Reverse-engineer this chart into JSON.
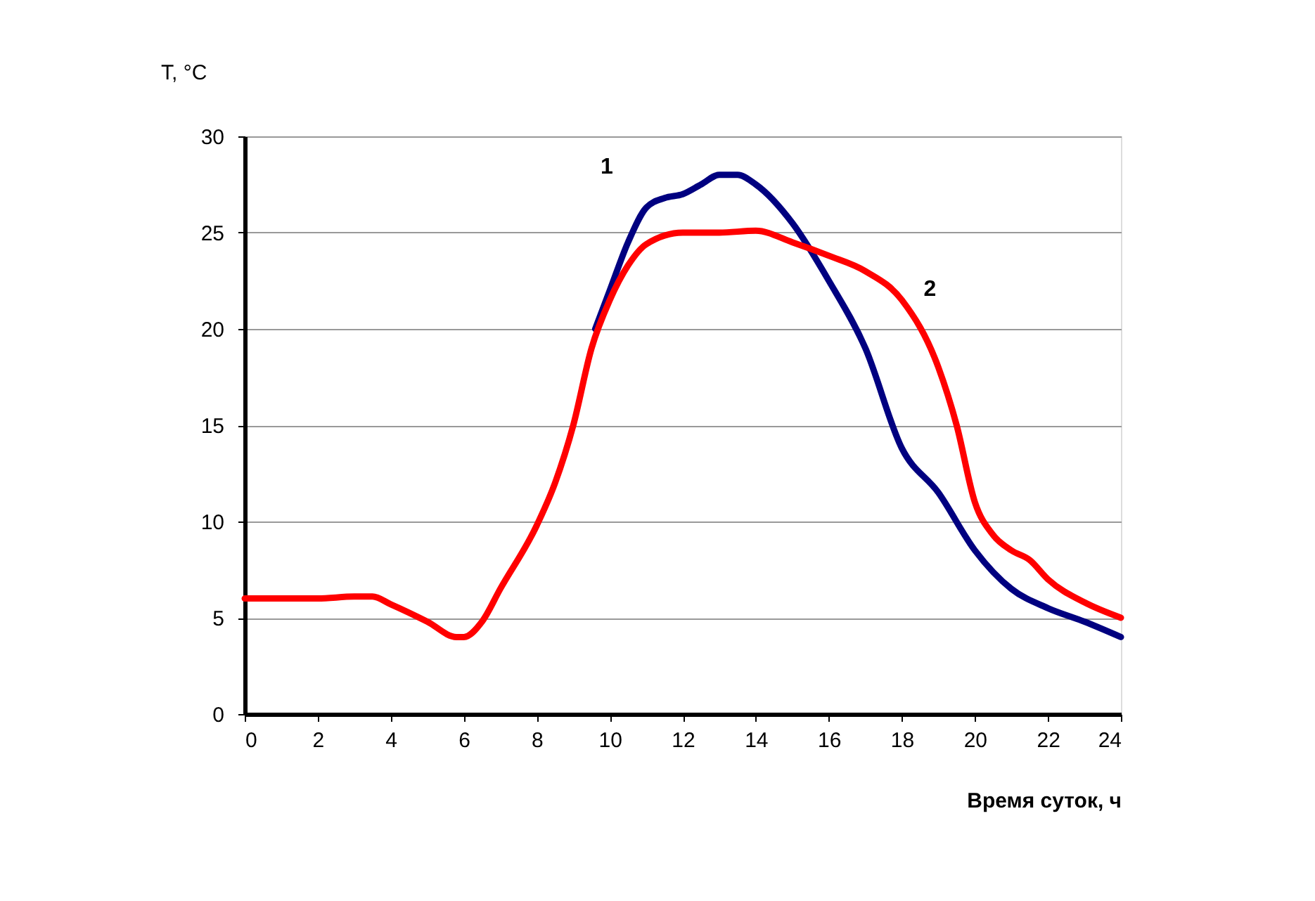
{
  "chart_data": {
    "type": "line",
    "xlabel": "Время суток, ч",
    "ylabel": "T, °C",
    "xlim": [
      0,
      24
    ],
    "xticks": [
      0,
      2,
      4,
      6,
      8,
      10,
      12,
      14,
      16,
      18,
      20,
      22,
      24
    ],
    "ylim": [
      0,
      30
    ],
    "yticks": [
      0,
      5,
      10,
      15,
      20,
      25,
      30
    ],
    "grid": "y",
    "legend": false,
    "line_style": "solid",
    "series": [
      {
        "name": "1",
        "color": "#000080",
        "x": [
          9.6,
          10,
          10.5,
          11,
          11.5,
          12,
          12.5,
          13,
          13.5,
          14,
          15,
          16,
          17,
          18,
          19,
          20,
          21,
          22,
          23,
          24
        ],
        "values": [
          20,
          22,
          24.5,
          26.3,
          26.8,
          27,
          27.5,
          28,
          28,
          27.5,
          25.5,
          22.5,
          19,
          13.8,
          11.5,
          8.5,
          6.5,
          5.5,
          4.8,
          4
        ]
      },
      {
        "name": "2",
        "color": "#ff0000",
        "x": [
          0,
          1,
          2,
          3,
          3.5,
          4,
          5,
          5.8,
          6,
          6.5,
          7,
          8,
          8.5,
          9,
          9.5,
          10,
          10.5,
          11,
          12,
          13,
          14,
          15,
          16,
          17,
          18,
          19,
          19.5,
          20,
          20.5,
          21,
          21.5,
          22,
          23,
          24
        ],
        "values": [
          6,
          6,
          6,
          6.1,
          6.1,
          5.7,
          4.8,
          4,
          4,
          4.8,
          6.5,
          9.8,
          12,
          15,
          19,
          21.5,
          23.3,
          24.4,
          25,
          25,
          25.1,
          24.5,
          23.8,
          23,
          21.5,
          18,
          15,
          11,
          9.3,
          8.5,
          8,
          7,
          5.8,
          5
        ]
      }
    ]
  }
}
